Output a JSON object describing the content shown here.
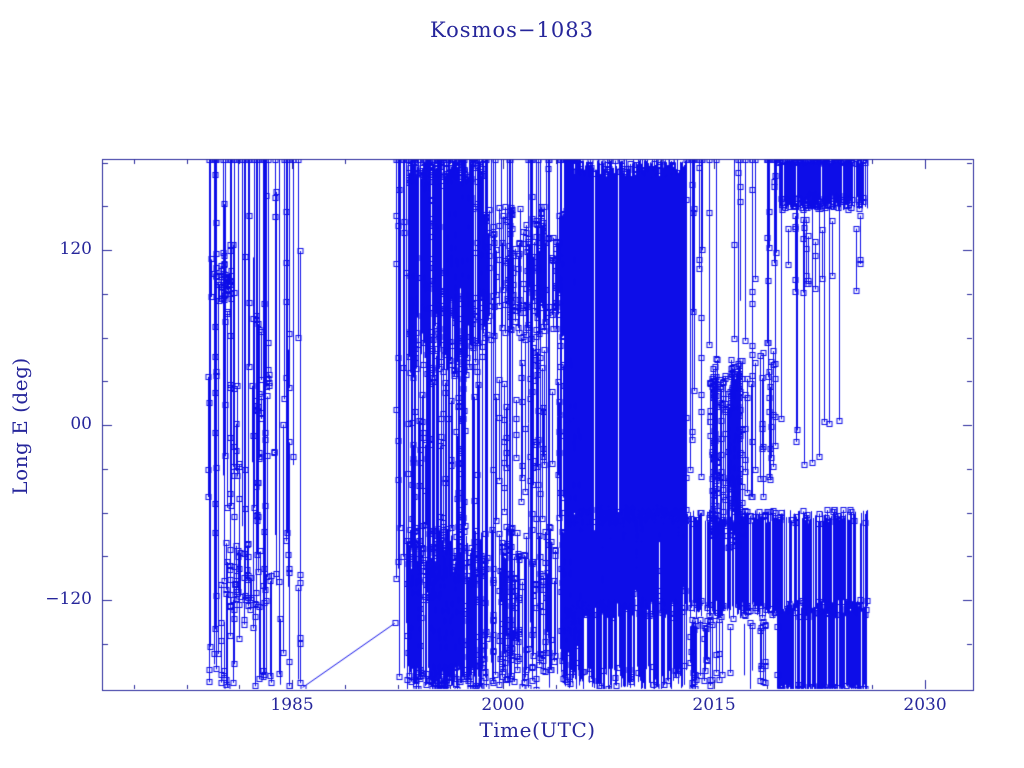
{
  "title": "Kosmos−1083",
  "axes": {
    "xlabel": "Time(UTC)",
    "ylabel": "Long E (deg)",
    "x_ticks": [
      {
        "value": 1985,
        "label": "1985"
      },
      {
        "value": 2000,
        "label": "2000"
      },
      {
        "value": 2015,
        "label": "2015"
      },
      {
        "value": 2030,
        "label": "2030"
      }
    ],
    "x_minor": [
      1973.75,
      1977.5,
      1981.25,
      1988.75,
      1992.5,
      1996.25,
      2003.75,
      2007.5,
      2011.25,
      2018.75,
      2022.5,
      2026.25
    ],
    "y_ticks": [
      {
        "value": 120,
        "label": "120"
      },
      {
        "value": 0,
        "label": "00"
      },
      {
        "value": -120,
        "label": "−120"
      }
    ],
    "y_minor": [
      180,
      150,
      90,
      60,
      30,
      -30,
      -60,
      -90,
      -150,
      -180
    ]
  },
  "colors": {
    "background": "#ffffff",
    "axis": "#26269b",
    "data": "#0d0de8"
  },
  "chart_data": {
    "type": "scatter",
    "title": "Kosmos−1083",
    "xlabel": "Time(UTC)",
    "ylabel": "Long E (deg)",
    "xlim": [
      1971.49,
      2033.41
    ],
    "ylim": [
      -181.71,
      182.4
    ],
    "grid": false,
    "legend": "none",
    "marker": "open-square",
    "marker_size_px": 5,
    "line_style": "vertical-connected-segments",
    "description": "Geosynchronous-type longitude history: dense vertical excursion traces with open-square sample markers; data spans ~1979 to ~2026 with a quiet gap 1985.7-1992.3 bridged by one sloping segment.",
    "connector_line": {
      "points": [
        [
          1985.75,
          -180
        ],
        [
          1992.3,
          -136
        ]
      ]
    },
    "pattern": {
      "seed": 7,
      "layers": [
        {
          "n": 40,
          "t": [
            1979.0,
            1985.6
          ],
          "top": [
            182,
            182
          ],
          "bot": [
            60,
            -182
          ],
          "m": 2,
          "me": 0.8
        },
        {
          "n": 34,
          "t": [
            1979.0,
            1985.6
          ],
          "top": [
            160,
            -40
          ],
          "bot": [
            40,
            -170
          ],
          "m": 2,
          "me": 0.9
        },
        {
          "n": 16,
          "t": [
            1979.1,
            1980.8
          ],
          "top": [
            118,
            95
          ],
          "bot": [
            105,
            85
          ],
          "m": 1,
          "me": 1.0
        },
        {
          "n": 14,
          "t": [
            1980.3,
            1982.2
          ],
          "top": [
            -80,
            -110
          ],
          "bot": [
            -100,
            -128
          ],
          "m": 1,
          "me": 1.0
        },
        {
          "n": 18,
          "t": [
            1979.0,
            1985.6
          ],
          "top": [
            -80,
            -140
          ],
          "bot": [
            -170,
            -182
          ],
          "m": 1,
          "me": 0.7
        },
        {
          "n": 60,
          "t": [
            1992.3,
            1998.6
          ],
          "top": [
            182,
            182
          ],
          "bot": [
            -182,
            -60
          ],
          "m": 2,
          "me": 0.6
        },
        {
          "n": 160,
          "t": [
            1993.3,
            1998.6
          ],
          "top": [
            182,
            165
          ],
          "bot": [
            95,
            30
          ],
          "m": 1,
          "me": 0.5
        },
        {
          "n": 160,
          "t": [
            1993.1,
            1998.6
          ],
          "top": [
            -70,
            -110
          ],
          "bot": [
            -165,
            -182
          ],
          "m": 1,
          "me": 0.5
        },
        {
          "n": 30,
          "t": [
            1992.3,
            1998.6
          ],
          "top": [
            60,
            -20
          ],
          "bot": [
            -60,
            -130
          ],
          "m": 2,
          "me": 0.9
        },
        {
          "n": 30,
          "t": [
            1998.6,
            2004.3
          ],
          "top": [
            182,
            182
          ],
          "bot": [
            -182,
            -120
          ],
          "m": 1,
          "me": 0.4
        },
        {
          "n": 70,
          "t": [
            1998.6,
            2004.3
          ],
          "top": [
            150,
            110
          ],
          "bot": [
            95,
            60
          ],
          "m": 2,
          "me": 1.0
        },
        {
          "n": 60,
          "t": [
            1998.6,
            2004.3
          ],
          "top": [
            -70,
            -110
          ],
          "bot": [
            -140,
            -182
          ],
          "m": 2,
          "me": 1.0
        },
        {
          "n": 25,
          "t": [
            1998.6,
            2004.3
          ],
          "top": [
            60,
            0
          ],
          "bot": [
            -20,
            -70
          ],
          "m": 2,
          "me": 1.0
        },
        {
          "n": 380,
          "t": [
            2004.6,
            2013.0
          ],
          "top": [
            182,
            170
          ],
          "bot": [
            -60,
            -130
          ],
          "m": 0,
          "me": 0.15
        },
        {
          "n": 200,
          "t": [
            2004.3,
            2013.0
          ],
          "top": [
            -55,
            -80
          ],
          "bot": [
            -165,
            -182
          ],
          "m": 0,
          "me": 0.2
        },
        {
          "n": 50,
          "t": [
            2004.3,
            2005.3
          ],
          "top": [
            182,
            182
          ],
          "bot": [
            -182,
            -100
          ],
          "m": 1,
          "me": 0.5
        },
        {
          "n": 450,
          "t": [
            2004.5,
            2025.85
          ],
          "top": [
            -58,
            -68
          ],
          "bot": [
            -120,
            -133
          ],
          "m": 0,
          "me": 0.25
        },
        {
          "n": 200,
          "t": [
            2019.5,
            2025.85
          ],
          "top": [
            -120,
            -130
          ],
          "bot": [
            -178,
            -182
          ],
          "m": 0,
          "me": 0.1
        },
        {
          "n": 10,
          "t": [
            2013.0,
            2014.6
          ],
          "top": [
            182,
            182
          ],
          "bot": [
            120,
            -40
          ],
          "m": 2,
          "me": 0.9
        },
        {
          "n": 8,
          "t": [
            2013.0,
            2014.6
          ],
          "top": [
            -132,
            -140
          ],
          "bot": [
            -160,
            -182
          ],
          "m": 1,
          "me": 0.8
        },
        {
          "n": 60,
          "t": [
            2014.7,
            2017.1
          ],
          "top": [
            45,
            10
          ],
          "bot": [
            -30,
            -85
          ],
          "m": 3,
          "me": 1.0
        },
        {
          "n": 16,
          "t": [
            2014.6,
            2019.5
          ],
          "top": [
            182,
            182
          ],
          "bot": [
            130,
            -10
          ],
          "m": 2,
          "me": 0.8
        },
        {
          "n": 20,
          "t": [
            2013.0,
            2019.5
          ],
          "top": [
            -133,
            -140
          ],
          "bot": [
            -165,
            -182
          ],
          "m": 1,
          "me": 0.7
        },
        {
          "n": 14,
          "t": [
            2017.2,
            2019.5
          ],
          "top": [
            60,
            20
          ],
          "bot": [
            -10,
            -50
          ],
          "m": 2,
          "me": 1.0
        },
        {
          "n": 220,
          "t": [
            2019.55,
            2025.9
          ],
          "top": [
            182,
            179
          ],
          "bot": [
            158,
            147
          ],
          "m": 0,
          "me": 0.35
        },
        {
          "n": 9,
          "t": [
            2019.6,
            2025.8
          ],
          "top": [
            160,
            150
          ],
          "bot": [
            20,
            -60
          ],
          "m": 1,
          "me": 1.0
        },
        {
          "n": 12,
          "t": [
            2019.5,
            2025.9
          ],
          "top": [
            145,
            120
          ],
          "bot": [
            115,
            90
          ],
          "m": 1,
          "me": 1.0
        }
      ]
    }
  }
}
